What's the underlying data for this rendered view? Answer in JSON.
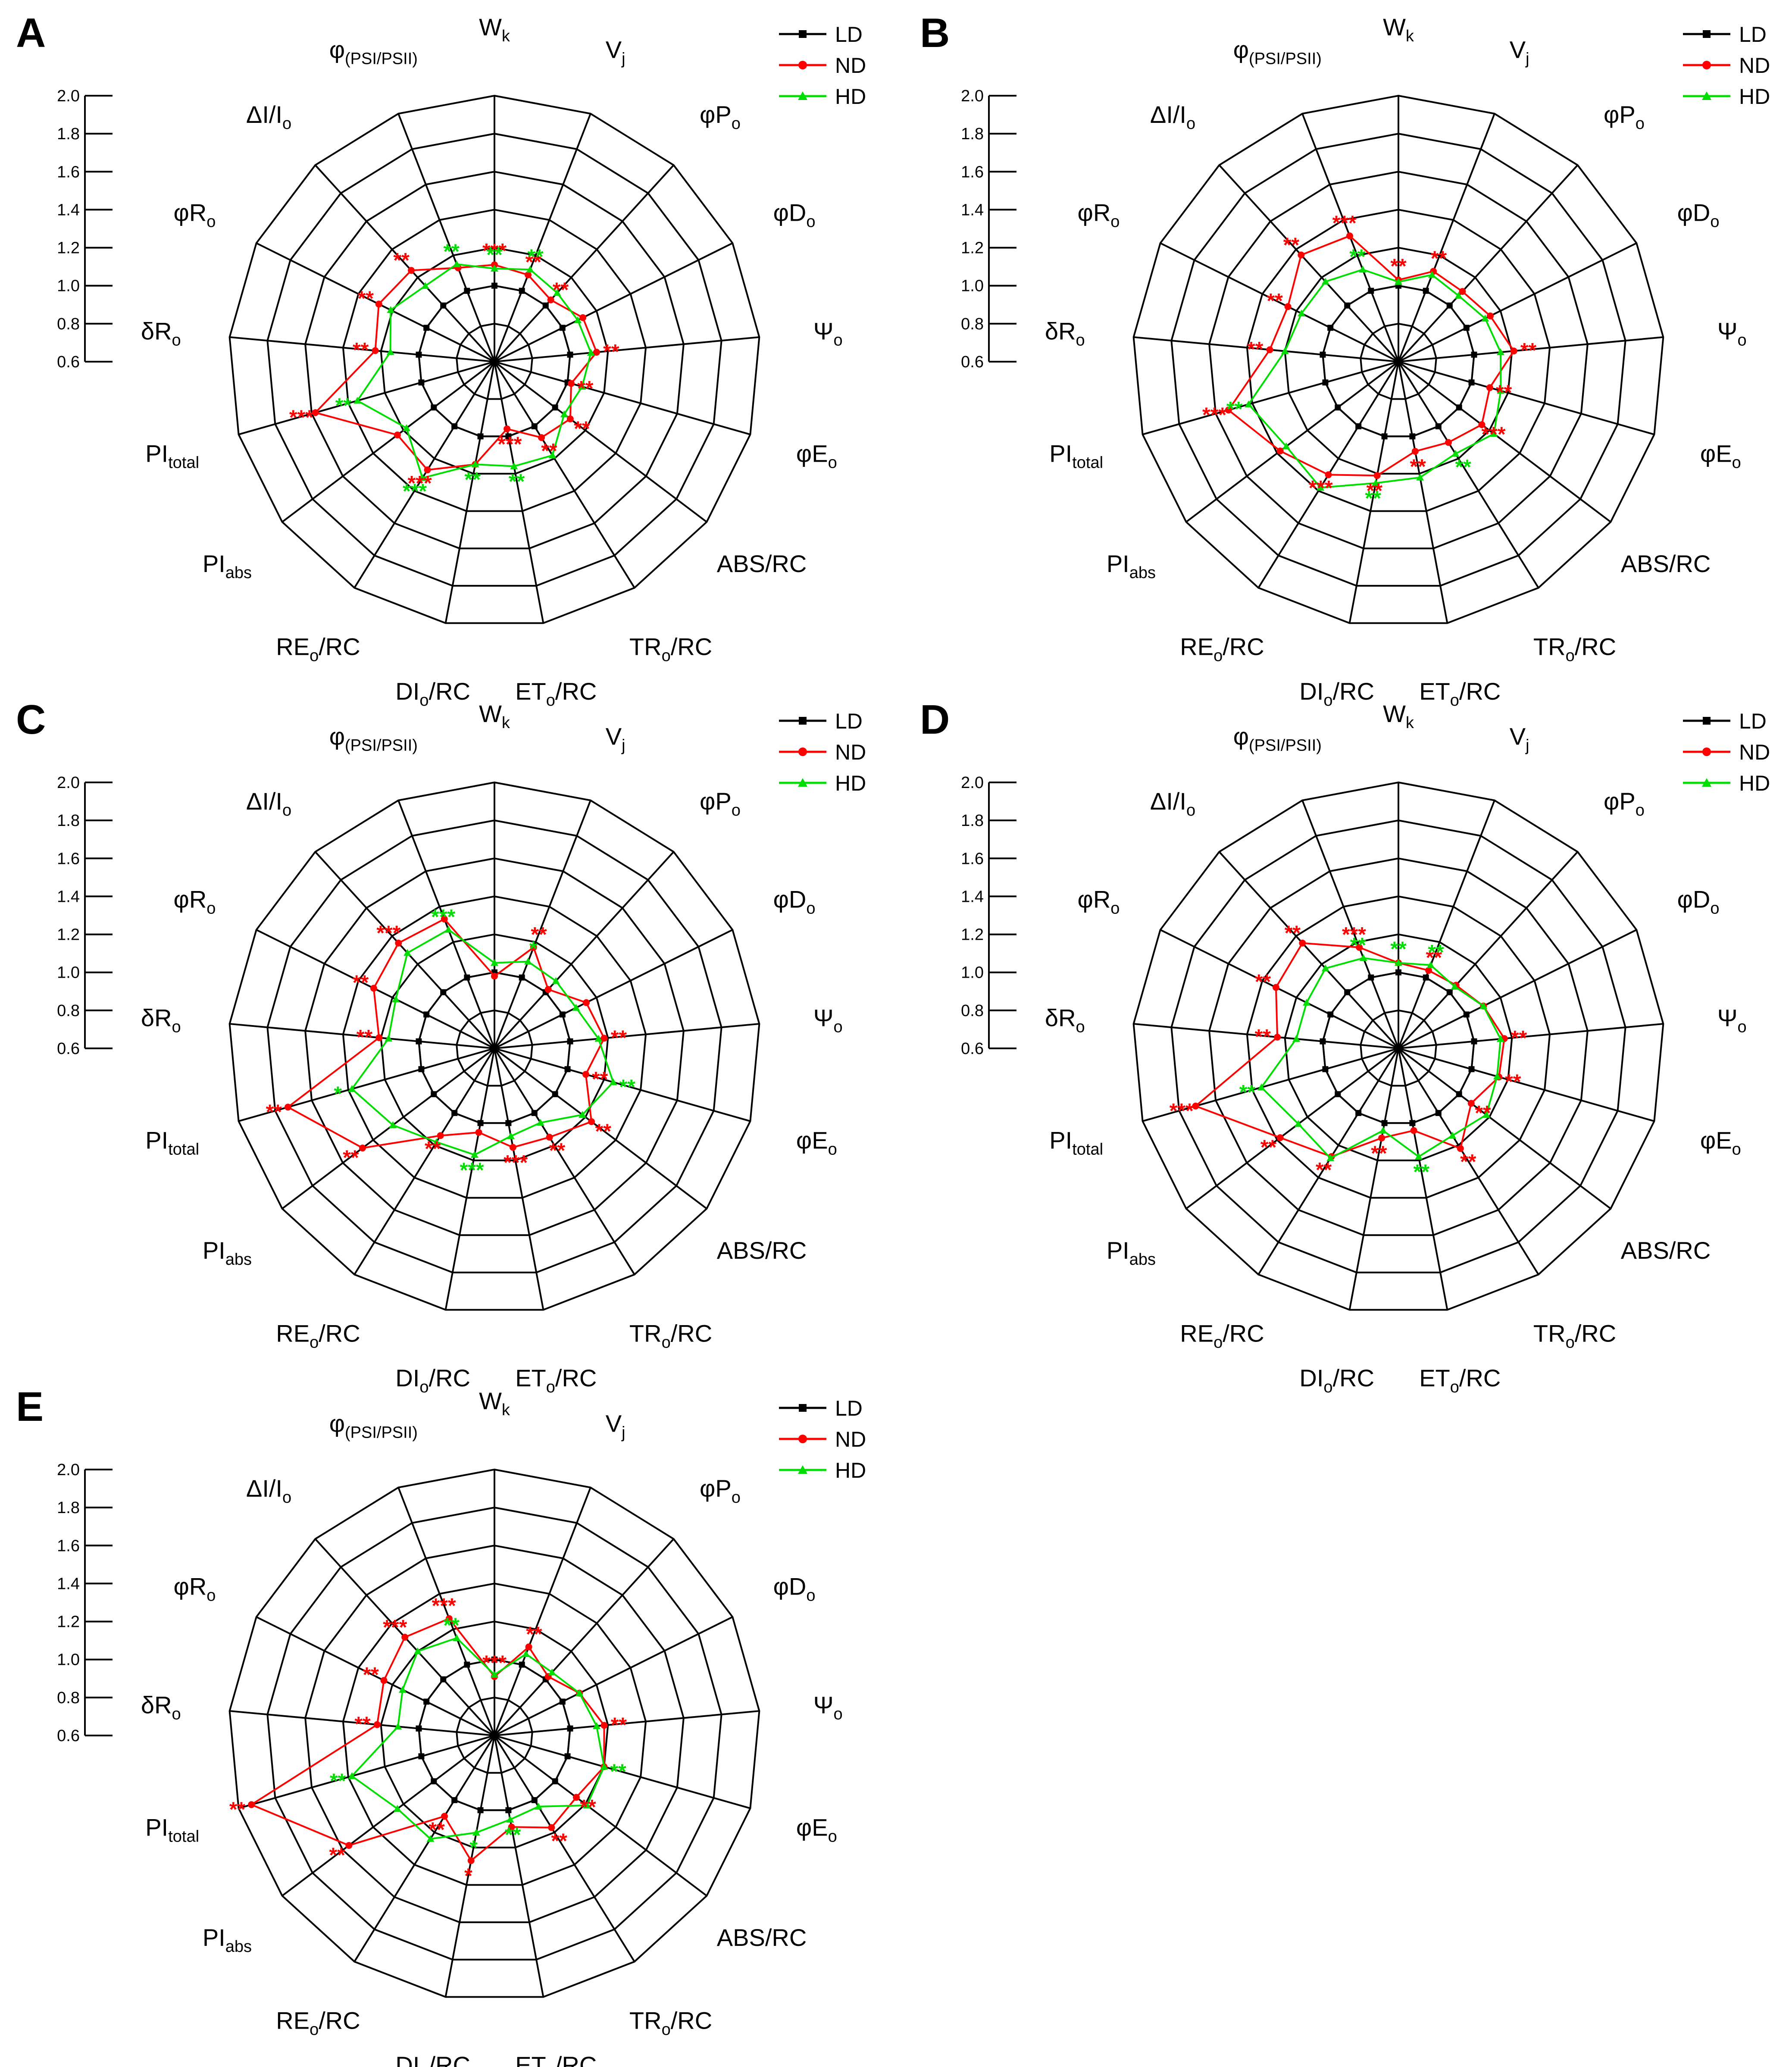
{
  "figure": {
    "colors": {
      "LD": "#000000",
      "ND": "#ff0000",
      "HD": "#00dd00",
      "grid": "#000000"
    },
    "legend_entries": [
      "LD",
      "ND",
      "HD"
    ],
    "axes": [
      {
        "base": "W",
        "sub": "k"
      },
      {
        "base": "V",
        "sub": "j"
      },
      {
        "base": "φP",
        "sub": "o"
      },
      {
        "base": "φD",
        "sub": "o"
      },
      {
        "base": "Ψ",
        "sub": "o"
      },
      {
        "base": "φE",
        "sub": "o"
      },
      {
        "base": "ABS/RC",
        "sub": ""
      },
      {
        "base": "TR",
        "sub": "o",
        "post": "/RC"
      },
      {
        "base": "ET",
        "sub": "o",
        "post": "/RC"
      },
      {
        "base": "DI",
        "sub": "o",
        "post": "/RC"
      },
      {
        "base": "RE",
        "sub": "o",
        "post": "/RC"
      },
      {
        "base": "PI",
        "sub": "abs"
      },
      {
        "base": "PI",
        "sub": "total"
      },
      {
        "base": "δR",
        "sub": "o"
      },
      {
        "base": "φR",
        "sub": "o"
      },
      {
        "base": "ΔI/I",
        "sub": "o"
      },
      {
        "base": "φ",
        "sub": "(PSI/PSII)"
      }
    ],
    "scale_ticks": [
      "2.0",
      "1.8",
      "1.6",
      "1.4",
      "1.2",
      "1.0",
      "0.8",
      "0.6"
    ]
  },
  "chart_data": [
    {
      "type": "radar",
      "panel": "A",
      "range": [
        0.6,
        2.0
      ],
      "series": [
        {
          "name": "LD",
          "values": [
            1.0,
            1.0,
            1.0,
            1.0,
            1.0,
            1.0,
            1.0,
            1.0,
            1.0,
            1.0,
            1.0,
            1.0,
            1.0,
            1.0,
            1.0,
            1.0,
            1.0
          ]
        },
        {
          "name": "ND",
          "values": [
            1.11,
            1.09,
            1.04,
            1.12,
            1.14,
            1.02,
            1.1,
            1.07,
            0.96,
            1.15,
            1.27,
            1.24,
            1.58,
            1.23,
            1.28,
            1.25,
            1.13
          ]
        },
        {
          "name": "HD",
          "values": [
            1.09,
            1.12,
            1.09,
            1.09,
            1.11,
            1.08,
            1.06,
            1.18,
            1.16,
            1.15,
            1.32,
            1.18,
            1.35,
            1.15,
            1.21,
            1.14,
            1.15
          ]
        }
      ],
      "significance": [
        {
          "axis": 0,
          "series": "ND",
          "label": "***"
        },
        {
          "axis": 0,
          "series": "HD",
          "label": "**"
        },
        {
          "axis": 1,
          "series": "ND",
          "label": "**"
        },
        {
          "axis": 1,
          "series": "HD",
          "label": "**"
        },
        {
          "axis": 2,
          "series": "ND",
          "label": "**"
        },
        {
          "axis": 4,
          "series": "ND",
          "label": "**"
        },
        {
          "axis": 5,
          "series": "ND",
          "label": "**"
        },
        {
          "axis": 6,
          "series": "ND",
          "label": "**"
        },
        {
          "axis": 7,
          "series": "ND",
          "label": "**"
        },
        {
          "axis": 8,
          "series": "ND",
          "label": "***"
        },
        {
          "axis": 8,
          "series": "HD",
          "label": "**"
        },
        {
          "axis": 9,
          "series": "HD",
          "label": "**"
        },
        {
          "axis": 10,
          "series": "ND",
          "label": "***"
        },
        {
          "axis": 10,
          "series": "HD",
          "label": "***"
        },
        {
          "axis": 12,
          "series": "ND",
          "label": "***"
        },
        {
          "axis": 12,
          "series": "HD",
          "label": "**"
        },
        {
          "axis": 13,
          "series": "ND",
          "label": "**"
        },
        {
          "axis": 14,
          "series": "ND",
          "label": "**"
        },
        {
          "axis": 15,
          "series": "ND",
          "label": "**"
        },
        {
          "axis": 16,
          "series": "HD",
          "label": "**"
        }
      ]
    },
    {
      "type": "radar",
      "panel": "B",
      "range": [
        0.6,
        2.0
      ],
      "series": [
        {
          "name": "LD",
          "values": [
            1.0,
            1.0,
            1.0,
            1.0,
            1.0,
            1.0,
            1.0,
            1.0,
            1.0,
            1.0,
            1.0,
            1.0,
            1.0,
            1.0,
            1.0,
            1.0,
            1.0
          ]
        },
        {
          "name": "ND",
          "values": [
            1.03,
            1.11,
            1.1,
            1.14,
            1.21,
            1.1,
            1.15,
            1.1,
            1.08,
            1.21,
            1.3,
            1.38,
            1.53,
            1.28,
            1.25,
            1.36,
            1.31
          ]
        },
        {
          "name": "HD",
          "values": [
            1.02,
            1.09,
            1.07,
            1.11,
            1.14,
            1.16,
            1.23,
            1.17,
            1.22,
            1.25,
            1.38,
            1.34,
            1.42,
            1.2,
            1.17,
            1.17,
            1.12
          ]
        }
      ],
      "significance": [
        {
          "axis": 0,
          "series": "ND",
          "label": "**"
        },
        {
          "axis": 1,
          "series": "ND",
          "label": "**"
        },
        {
          "axis": 4,
          "series": "ND",
          "label": "**"
        },
        {
          "axis": 5,
          "series": "ND",
          "label": "**"
        },
        {
          "axis": 6,
          "series": "ND",
          "label": "***"
        },
        {
          "axis": 7,
          "series": "HD",
          "label": "**"
        },
        {
          "axis": 8,
          "series": "ND",
          "label": "**"
        },
        {
          "axis": 9,
          "series": "ND",
          "label": "**"
        },
        {
          "axis": 9,
          "series": "HD",
          "label": "**"
        },
        {
          "axis": 10,
          "series": "ND",
          "label": "***"
        },
        {
          "axis": 12,
          "series": "ND",
          "label": "***"
        },
        {
          "axis": 12,
          "series": "HD",
          "label": "**"
        },
        {
          "axis": 13,
          "series": "ND",
          "label": "**"
        },
        {
          "axis": 14,
          "series": "ND",
          "label": "**"
        },
        {
          "axis": 15,
          "series": "ND",
          "label": "**"
        },
        {
          "axis": 16,
          "series": "ND",
          "label": "***"
        },
        {
          "axis": 16,
          "series": "HD",
          "label": "**"
        }
      ]
    },
    {
      "type": "radar",
      "panel": "C",
      "range": [
        0.6,
        2.0
      ],
      "series": [
        {
          "name": "LD",
          "values": [
            1.0,
            1.0,
            1.0,
            1.0,
            1.0,
            1.0,
            1.0,
            1.0,
            1.0,
            1.0,
            1.0,
            1.0,
            1.0,
            1.0,
            1.0,
            1.0,
            1.0
          ]
        },
        {
          "name": "ND",
          "values": [
            0.98,
            1.17,
            1.02,
            1.14,
            1.18,
            1.1,
            1.24,
            1.15,
            1.13,
            1.05,
            1.14,
            1.47,
            1.73,
            1.21,
            1.31,
            1.35,
            1.33
          ]
        },
        {
          "name": "HD",
          "values": [
            1.05,
            1.09,
            1.08,
            1.08,
            1.15,
            1.25,
            1.18,
            1.06,
            1.07,
            1.17,
            1.18,
            1.27,
            1.38,
            1.16,
            1.18,
            1.28,
            1.27
          ]
        }
      ],
      "significance": [
        {
          "axis": 1,
          "series": "ND",
          "label": "**"
        },
        {
          "axis": 1,
          "series": "HD",
          "label": "*"
        },
        {
          "axis": 4,
          "series": "ND",
          "label": "**"
        },
        {
          "axis": 5,
          "series": "ND",
          "label": "**"
        },
        {
          "axis": 5,
          "series": "HD",
          "label": "**"
        },
        {
          "axis": 6,
          "series": "ND",
          "label": "**"
        },
        {
          "axis": 7,
          "series": "ND",
          "label": "**"
        },
        {
          "axis": 8,
          "series": "ND",
          "label": "***"
        },
        {
          "axis": 9,
          "series": "HD",
          "label": "***"
        },
        {
          "axis": 10,
          "series": "ND",
          "label": "**"
        },
        {
          "axis": 11,
          "series": "ND",
          "label": "**"
        },
        {
          "axis": 12,
          "series": "ND",
          "label": "**"
        },
        {
          "axis": 12,
          "series": "HD",
          "label": "*"
        },
        {
          "axis": 13,
          "series": "ND",
          "label": "**"
        },
        {
          "axis": 14,
          "series": "ND",
          "label": "**"
        },
        {
          "axis": 15,
          "series": "ND",
          "label": "***"
        },
        {
          "axis": 16,
          "series": "HD",
          "label": "***"
        }
      ]
    },
    {
      "type": "radar",
      "panel": "D",
      "range": [
        0.6,
        2.0
      ],
      "series": [
        {
          "name": "LD",
          "values": [
            1.0,
            1.0,
            1.0,
            1.0,
            1.0,
            1.0,
            1.0,
            1.0,
            1.0,
            1.0,
            1.0,
            1.0,
            1.0,
            1.0,
            1.0,
            1.0,
            1.0
          ]
        },
        {
          "name": "ND",
          "values": [
            1.05,
            1.04,
            1.05,
            1.1,
            1.16,
            1.15,
            1.08,
            1.22,
            1.04,
            1.08,
            1.27,
            1.38,
            1.71,
            1.24,
            1.32,
            1.35,
            1.17
          ]
        },
        {
          "name": "HD",
          "values": [
            1.05,
            1.07,
            1.04,
            1.1,
            1.14,
            1.14,
            1.18,
            1.14,
            1.18,
            1.04,
            1.28,
            1.26,
            1.35,
            1.14,
            1.14,
            1.17,
            1.11
          ]
        }
      ],
      "significance": [
        {
          "axis": 0,
          "series": "HD",
          "label": "**"
        },
        {
          "axis": 1,
          "series": "ND",
          "label": "**"
        },
        {
          "axis": 1,
          "series": "HD",
          "label": "**"
        },
        {
          "axis": 4,
          "series": "ND",
          "label": "**"
        },
        {
          "axis": 5,
          "series": "ND",
          "label": "**"
        },
        {
          "axis": 6,
          "series": "ND",
          "label": "**"
        },
        {
          "axis": 7,
          "series": "ND",
          "label": "**"
        },
        {
          "axis": 8,
          "series": "HD",
          "label": "**"
        },
        {
          "axis": 9,
          "series": "ND",
          "label": "**"
        },
        {
          "axis": 10,
          "series": "ND",
          "label": "**"
        },
        {
          "axis": 11,
          "series": "ND",
          "label": "**"
        },
        {
          "axis": 12,
          "series": "ND",
          "label": "***"
        },
        {
          "axis": 12,
          "series": "HD",
          "label": "**"
        },
        {
          "axis": 13,
          "series": "ND",
          "label": "**"
        },
        {
          "axis": 14,
          "series": "ND",
          "label": "**"
        },
        {
          "axis": 15,
          "series": "ND",
          "label": "**"
        },
        {
          "axis": 16,
          "series": "ND",
          "label": "***"
        },
        {
          "axis": 16,
          "series": "HD",
          "label": "**"
        }
      ]
    },
    {
      "type": "radar",
      "panel": "E",
      "range": [
        0.6,
        2.0
      ],
      "series": [
        {
          "name": "LD",
          "values": [
            1.0,
            1.0,
            1.0,
            1.0,
            1.0,
            1.0,
            1.0,
            1.0,
            1.0,
            1.0,
            1.0,
            1.0,
            1.0,
            1.0,
            1.0,
            1.0,
            1.0
          ]
        },
        {
          "name": "ND",
          "values": [
            0.91,
            1.1,
            1.02,
            1.1,
            1.18,
            1.2,
            1.14,
            1.17,
            1.09,
            1.27,
            1.1,
            1.56,
            1.93,
            1.22,
            1.25,
            1.3,
            1.26
          ]
        },
        {
          "name": "HD",
          "values": [
            0.92,
            1.06,
            1.05,
            1.1,
            1.14,
            1.2,
            1.21,
            1.04,
            1.05,
            1.12,
            1.24,
            1.24,
            1.38,
            1.11,
            1.14,
            1.2,
            1.15
          ]
        }
      ],
      "significance": [
        {
          "axis": 0,
          "series": "ND",
          "label": "***"
        },
        {
          "axis": 1,
          "series": "ND",
          "label": "**"
        },
        {
          "axis": 4,
          "series": "ND",
          "label": "**"
        },
        {
          "axis": 5,
          "series": "ND",
          "label": "**"
        },
        {
          "axis": 5,
          "series": "HD",
          "label": "**"
        },
        {
          "axis": 6,
          "series": "ND",
          "label": "**"
        },
        {
          "axis": 7,
          "series": "ND",
          "label": "**"
        },
        {
          "axis": 8,
          "series": "HD",
          "label": "**"
        },
        {
          "axis": 9,
          "series": "ND",
          "label": "*"
        },
        {
          "axis": 9,
          "series": "HD",
          "label": "*"
        },
        {
          "axis": 10,
          "series": "ND",
          "label": "**"
        },
        {
          "axis": 11,
          "series": "ND",
          "label": "**"
        },
        {
          "axis": 12,
          "series": "ND",
          "label": "**"
        },
        {
          "axis": 12,
          "series": "HD",
          "label": "**"
        },
        {
          "axis": 13,
          "series": "ND",
          "label": "**"
        },
        {
          "axis": 14,
          "series": "ND",
          "label": "**"
        },
        {
          "axis": 15,
          "series": "ND",
          "label": "***"
        },
        {
          "axis": 16,
          "series": "ND",
          "label": "***"
        },
        {
          "axis": 16,
          "series": "HD",
          "label": "**"
        }
      ]
    }
  ]
}
